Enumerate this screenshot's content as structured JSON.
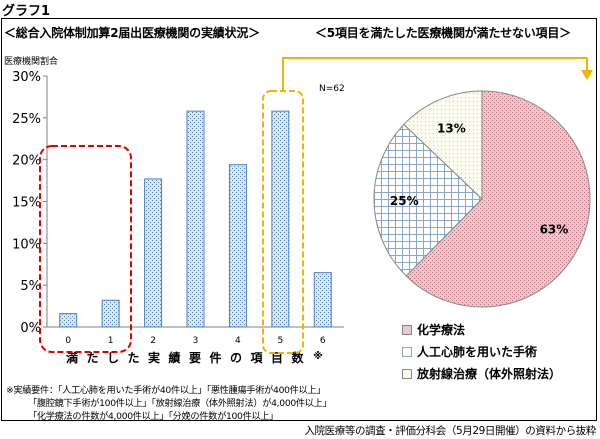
{
  "graph_label": "グラフ1",
  "left_heading": "＜総合入院体制加算2届出医療機関の実績状況＞",
  "right_heading": "＜5項目を満たした医療機関が満たせない項目＞",
  "colors": {
    "bar_fill": "#b8cce4",
    "bar_stroke": "#4f81bd",
    "pie_chemo": "#e6b9c0",
    "pie_heart": "#dce6f1",
    "pie_radiation": "#f2f2dc",
    "highlight_red": "#e00000",
    "highlight_gold": "#f0b400"
  },
  "chart_data": [
    {
      "type": "bar",
      "ylabel": "医療機関割合",
      "n_label": "N=62",
      "xlabel": "満たした実績要件の項目数※",
      "categories": [
        "0",
        "1",
        "2",
        "3",
        "4",
        "5",
        "6"
      ],
      "values": [
        1.6,
        3.2,
        17.7,
        25.8,
        19.4,
        25.8,
        6.5
      ],
      "ylim": [
        0,
        30
      ],
      "yticks": [
        "0%",
        "5%",
        "10%",
        "15%",
        "20%",
        "25%",
        "30%"
      ],
      "grid": false
    },
    {
      "type": "pie",
      "labels": [
        "化学療法",
        "人工心肺を用いた手術",
        "放射線治療（体外照射法）"
      ],
      "values": [
        63,
        25,
        13
      ],
      "data_labels": [
        "63%",
        "25%",
        "13%"
      ],
      "legend_position": "bottom"
    }
  ],
  "notes": [
    "※実績要件：「人工心肺を用いた手術が40件以上」「悪性腫瘍手術が400件以上」",
    "「腹腔鏡下手術が100件以上」「放射線治療（体外照射法）が4,000件以上」",
    "「化学療法の件数が4,000件以上」「分娩の件数が100件以上」"
  ],
  "source": "入院医療等の調査・評価分科会（5月29日開催）の資料から抜粋"
}
